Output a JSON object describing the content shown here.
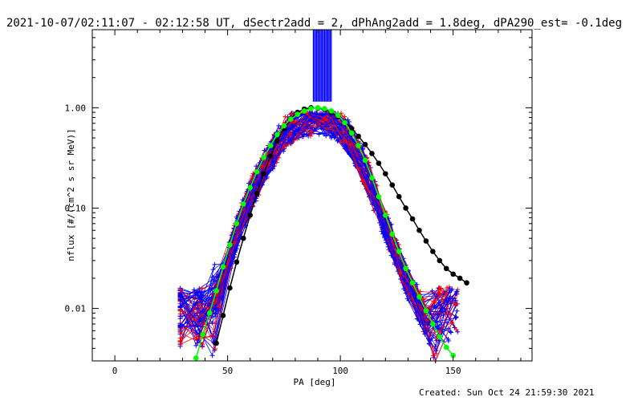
{
  "chart_data": {
    "type": "scatter",
    "title": "2021-10-07/02:11:07 - 02:12:58 UT, dSectr2add = 2, dPhAng2add = 1.8deg, dPA290_est= -0.1deg",
    "xlabel": "PA [deg]",
    "ylabel": "nflux [#/(cm^2 s sr MeV)]",
    "xlim": [
      -10,
      185
    ],
    "ylim": [
      0.003,
      6.0
    ],
    "yscale": "log",
    "grid": false,
    "x_ticks": [
      0,
      50,
      100,
      150
    ],
    "x_tick_labels": [
      "0",
      "50",
      "100",
      "150"
    ],
    "y_ticks": [
      0.01,
      0.1,
      1.0
    ],
    "y_tick_labels": [
      "0.01",
      "0.10",
      "1.00"
    ],
    "colors": {
      "red": "#ff0000",
      "blue": "#0000ff",
      "black": "#000000",
      "green": "#00ff00"
    },
    "peak_bar": {
      "x": [
        88,
        96
      ],
      "ylim_low": 1.15,
      "color": "#0000ff"
    },
    "series": [
      {
        "color": "#000000",
        "marker": "filled-circle",
        "x": [
          45,
          48,
          51,
          54,
          57,
          60,
          63,
          66,
          69,
          72,
          75,
          78,
          81,
          84,
          87,
          90,
          93,
          96,
          99,
          102,
          105,
          108,
          111,
          114,
          117,
          120,
          123,
          126,
          129,
          132,
          135,
          138,
          141,
          144,
          147,
          150,
          153,
          156
        ],
        "y": [
          0.0045,
          0.0085,
          0.016,
          0.029,
          0.05,
          0.085,
          0.14,
          0.22,
          0.33,
          0.47,
          0.62,
          0.78,
          0.9,
          0.97,
          1.0,
          0.99,
          0.96,
          0.9,
          0.82,
          0.72,
          0.62,
          0.52,
          0.43,
          0.35,
          0.28,
          0.22,
          0.17,
          0.13,
          0.1,
          0.078,
          0.06,
          0.047,
          0.037,
          0.03,
          0.025,
          0.022,
          0.02,
          0.018
        ]
      },
      {
        "color": "#00ff00",
        "marker": "filled-circle",
        "x": [
          36,
          39,
          42,
          45,
          48,
          51,
          54,
          57,
          60,
          63,
          66,
          69,
          72,
          75,
          78,
          81,
          84,
          87,
          90,
          93,
          96,
          99,
          102,
          105,
          108,
          111,
          114,
          117,
          120,
          123,
          126,
          129,
          132,
          135,
          138,
          141,
          144,
          147,
          150
        ],
        "y": [
          0.0032,
          0.0055,
          0.009,
          0.015,
          0.026,
          0.043,
          0.07,
          0.11,
          0.16,
          0.23,
          0.32,
          0.42,
          0.54,
          0.66,
          0.77,
          0.86,
          0.93,
          0.98,
          1.0,
          0.98,
          0.93,
          0.84,
          0.71,
          0.56,
          0.42,
          0.3,
          0.2,
          0.13,
          0.085,
          0.055,
          0.037,
          0.025,
          0.018,
          0.013,
          0.0095,
          0.007,
          0.0052,
          0.0041,
          0.0034
        ]
      }
    ],
    "footer": "Created: Sun Oct 24 21:59:30 2021"
  }
}
